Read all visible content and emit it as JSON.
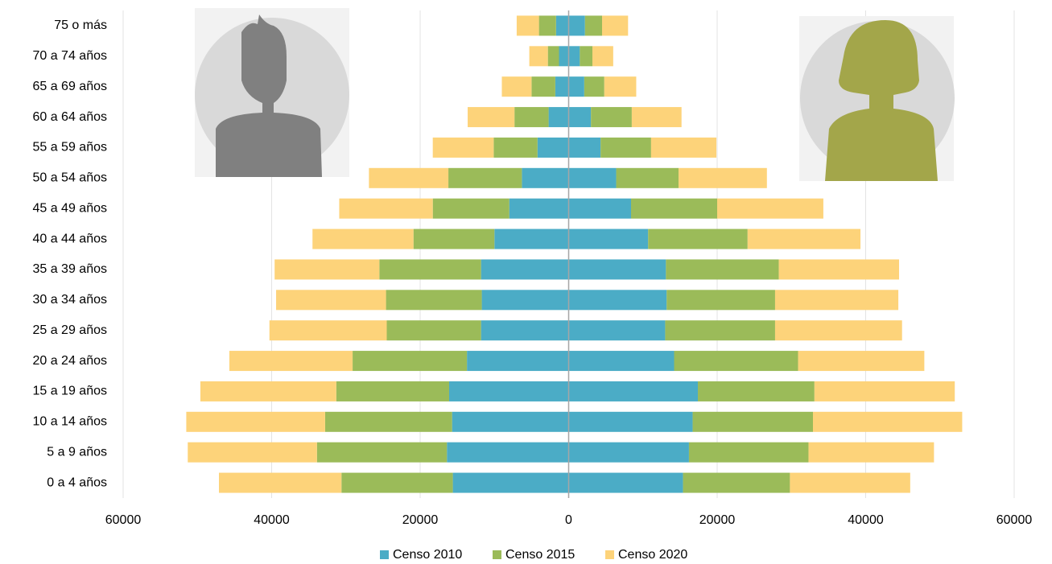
{
  "chart_data": {
    "type": "pyramid",
    "categories": [
      "75 o más",
      "70 a 74 años",
      "65 a 69 años",
      "60 a 64 años",
      "55 a 59 años",
      "50 a 54 años",
      "45 a 49 años",
      "40 a 44 años",
      "35 a 39 años",
      "30 a 34 años",
      "25 a 29 años",
      "20 a 24 años",
      "15 a 19 años",
      "10 a 14 años",
      "5 a 9 años",
      "0 a 4 años"
    ],
    "series": [
      {
        "name": "Censo 2010",
        "color": "#4bacc6",
        "values_left": [
          -1700,
          -1300,
          -1800,
          -2700,
          -4200,
          -6300,
          -8000,
          -10000,
          -11800,
          -11700,
          -11800,
          -13700,
          -16100,
          -15700,
          -16400,
          -15600
        ],
        "values_right": [
          2200,
          1500,
          2100,
          3000,
          4300,
          6400,
          8400,
          10700,
          13100,
          13200,
          13000,
          14200,
          17400,
          16700,
          16200,
          15400
        ]
      },
      {
        "name": "Censo 2015",
        "color": "#9bbb59",
        "values_left": [
          -2300,
          -1500,
          -3200,
          -4600,
          -5900,
          -9900,
          -10300,
          -10900,
          -13700,
          -12900,
          -12700,
          -15400,
          -15200,
          -17100,
          -17500,
          -15000
        ],
        "values_right": [
          2300,
          1700,
          2700,
          5500,
          6800,
          8400,
          11600,
          13400,
          15200,
          14600,
          14800,
          16700,
          15700,
          16200,
          16100,
          14400
        ]
      },
      {
        "name": "Censo 2020",
        "color": "#fdd37a",
        "values_left": [
          -3000,
          -2500,
          -4000,
          -6300,
          -8200,
          -10700,
          -12600,
          -13600,
          -14100,
          -14800,
          -15800,
          -16600,
          -18300,
          -18700,
          -17400,
          -16500
        ],
        "values_right": [
          3500,
          2800,
          4300,
          6700,
          8800,
          11900,
          14300,
          15200,
          16200,
          16600,
          17100,
          17000,
          18900,
          20100,
          16900,
          16200
        ]
      }
    ],
    "xlim": [
      -60000,
      60000
    ],
    "xticks": [
      {
        "value": -60000,
        "label": "60000"
      },
      {
        "value": -40000,
        "label": "40000"
      },
      {
        "value": -20000,
        "label": "20000"
      },
      0,
      20000,
      40000,
      60000
    ],
    "grid": true
  }
}
